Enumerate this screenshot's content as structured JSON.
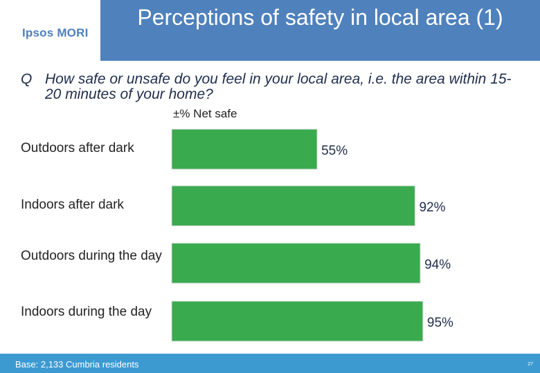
{
  "header": {
    "logo_text": "Ipsos MORI",
    "title": "Perceptions of safety in local area (1)"
  },
  "question": {
    "prefix": "Q",
    "text": "How safe or unsafe do you feel in your local area, i.e. the area within 15-20 minutes of your home?"
  },
  "colors": {
    "bar": "#3aaa4e",
    "header": "#4f81bd",
    "footer": "#3d9ad1"
  },
  "chart_data": {
    "type": "bar",
    "orientation": "horizontal",
    "subtitle": "±% Net safe",
    "categories": [
      "Outdoors after dark",
      "Indoors after dark",
      "Outdoors during the day",
      "Indoors during the day"
    ],
    "values": [
      55,
      92,
      94,
      95
    ],
    "value_labels": [
      "55%",
      "92%",
      "94%",
      "95%"
    ],
    "xlim": [
      0,
      100
    ],
    "grid": false,
    "legend": "none"
  },
  "footer": {
    "base": "Base: 2,133 Cumbria residents",
    "page_number": "27"
  }
}
